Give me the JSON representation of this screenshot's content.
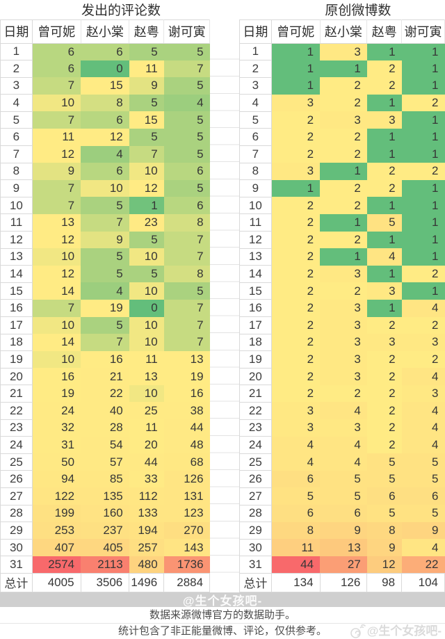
{
  "heatmap": {
    "low_value_color": "#63BE7B",
    "mid_value_color": "#FFEB84",
    "high_value_color": "#F8696B",
    "midpoint": "median"
  },
  "chart_data": [
    {
      "type": "heatmap",
      "title": "发出的评论数",
      "row_label_header": "日期",
      "columns": [
        "曾可妮",
        "赵小棠",
        "赵粤",
        "谢可寅"
      ],
      "rows": [
        "1",
        "2",
        "3",
        "4",
        "5",
        "6",
        "7",
        "8",
        "9",
        "10",
        "11",
        "12",
        "13",
        "14",
        "15",
        "16",
        "17",
        "18",
        "19",
        "20",
        "21",
        "22",
        "23",
        "24",
        "25",
        "26",
        "27",
        "28",
        "29",
        "30",
        "31"
      ],
      "values": [
        [
          6,
          6,
          5,
          5
        ],
        [
          6,
          0,
          11,
          7
        ],
        [
          7,
          15,
          9,
          5
        ],
        [
          10,
          8,
          5,
          4
        ],
        [
          7,
          6,
          15,
          5
        ],
        [
          11,
          12,
          5,
          5
        ],
        [
          12,
          4,
          7,
          5
        ],
        [
          9,
          6,
          10,
          6
        ],
        [
          7,
          10,
          12,
          5
        ],
        [
          7,
          5,
          1,
          6
        ],
        [
          13,
          7,
          23,
          8
        ],
        [
          12,
          9,
          5,
          7
        ],
        [
          10,
          5,
          10,
          7
        ],
        [
          12,
          5,
          5,
          8
        ],
        [
          14,
          4,
          10,
          5
        ],
        [
          7,
          19,
          0,
          7
        ],
        [
          10,
          5,
          10,
          7
        ],
        [
          14,
          7,
          10,
          7
        ],
        [
          10,
          16,
          11,
          13
        ],
        [
          16,
          21,
          13,
          19
        ],
        [
          19,
          22,
          10,
          16
        ],
        [
          24,
          40,
          25,
          38
        ],
        [
          32,
          28,
          11,
          44
        ],
        [
          31,
          54,
          20,
          48
        ],
        [
          50,
          57,
          44,
          68
        ],
        [
          94,
          85,
          33,
          126
        ],
        [
          122,
          135,
          112,
          131
        ],
        [
          199,
          160,
          133,
          123
        ],
        [
          253,
          237,
          194,
          270
        ],
        [
          407,
          405,
          257,
          143
        ],
        [
          2574,
          2113,
          480,
          1736
        ]
      ],
      "total_label": "总计",
      "totals": [
        4005,
        3506,
        1496,
        2884
      ]
    },
    {
      "type": "heatmap",
      "title": "原创微博数",
      "row_label_header": "日期",
      "columns": [
        "曾可妮",
        "赵小棠",
        "赵粤",
        "谢可寅"
      ],
      "rows": [
        "1",
        "2",
        "3",
        "4",
        "5",
        "6",
        "7",
        "8",
        "9",
        "10",
        "11",
        "12",
        "13",
        "14",
        "15",
        "16",
        "17",
        "18",
        "19",
        "20",
        "21",
        "22",
        "23",
        "24",
        "25",
        "26",
        "27",
        "28",
        "29",
        "30",
        "31"
      ],
      "values": [
        [
          1,
          3,
          1,
          1
        ],
        [
          1,
          1,
          2,
          1
        ],
        [
          1,
          2,
          2,
          1
        ],
        [
          3,
          2,
          1,
          2
        ],
        [
          2,
          3,
          3,
          1
        ],
        [
          2,
          2,
          1,
          1
        ],
        [
          2,
          2,
          1,
          1
        ],
        [
          3,
          1,
          2,
          2
        ],
        [
          1,
          2,
          2,
          1
        ],
        [
          2,
          2,
          1,
          1
        ],
        [
          2,
          1,
          5,
          1
        ],
        [
          2,
          2,
          1,
          1
        ],
        [
          2,
          1,
          4,
          1
        ],
        [
          2,
          3,
          1,
          2
        ],
        [
          2,
          2,
          3,
          1
        ],
        [
          2,
          3,
          1,
          4
        ],
        [
          2,
          3,
          2,
          2
        ],
        [
          2,
          3,
          3,
          3
        ],
        [
          2,
          3,
          2,
          2
        ],
        [
          2,
          3,
          2,
          4
        ],
        [
          2,
          2,
          2,
          3
        ],
        [
          3,
          4,
          2,
          4
        ],
        [
          3,
          3,
          2,
          4
        ],
        [
          4,
          4,
          2,
          4
        ],
        [
          4,
          4,
          5,
          5
        ],
        [
          6,
          5,
          5,
          5
        ],
        [
          5,
          5,
          6,
          6
        ],
        [
          6,
          6,
          5,
          5
        ],
        [
          8,
          9,
          8,
          9
        ],
        [
          11,
          13,
          9,
          4
        ],
        [
          44,
          27,
          12,
          22
        ]
      ],
      "total_label": "总计",
      "totals": [
        134,
        126,
        98,
        104
      ]
    }
  ],
  "watermarks": {
    "band": "@生个女孩吧-",
    "corner": "@生个女孩吧-",
    "corner_icon": "spiral-doodle"
  },
  "footer": {
    "line1": "数据来源微博官方的数据助手。",
    "line2": "统计包含了非正能量微博、评论，仅供参考。"
  }
}
